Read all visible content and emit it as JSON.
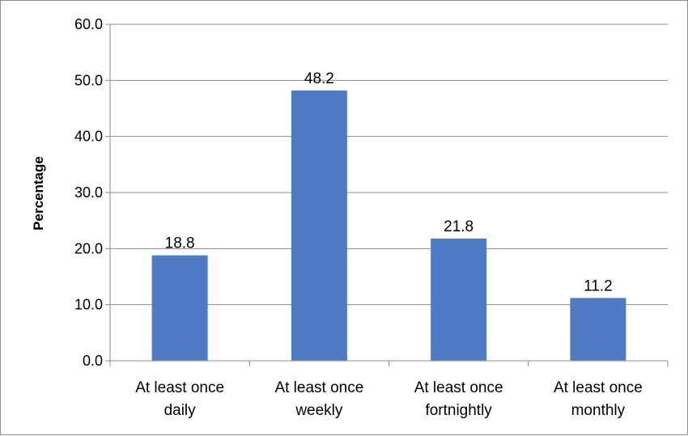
{
  "chart_data": {
    "type": "bar",
    "title": "",
    "xlabel": "",
    "ylabel": "Percentage",
    "ylim": [
      0,
      60
    ],
    "yticks": [
      "0.0",
      "10.0",
      "20.0",
      "30.0",
      "40.0",
      "50.0",
      "60.0"
    ],
    "grid": true,
    "categories": [
      [
        "At least once",
        "daily"
      ],
      [
        "At least once",
        "weekly"
      ],
      [
        "At least once",
        "fortnightly"
      ],
      [
        "At least once",
        "monthly"
      ]
    ],
    "values": [
      18.8,
      48.2,
      21.8,
      11.2
    ],
    "data_labels": [
      "18.8",
      "48.2",
      "21.8",
      "11.2"
    ],
    "bar_color": "#4f7bc4"
  }
}
